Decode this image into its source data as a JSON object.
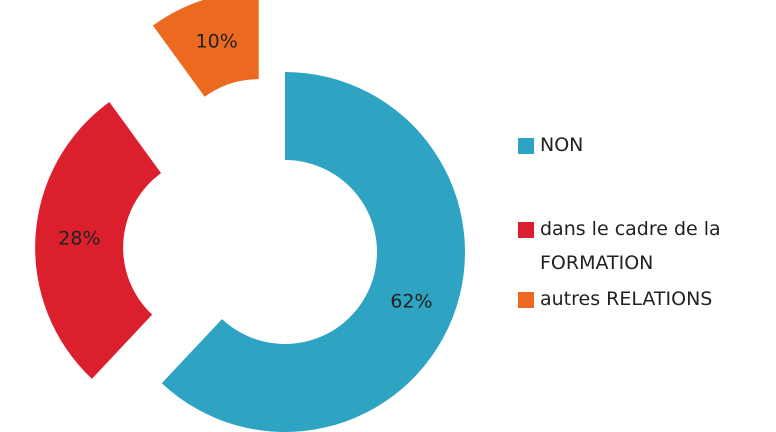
{
  "chart_data": {
    "type": "donut",
    "categories": [
      "NON",
      "dans le cadre de la FORMATION",
      "autres RELATIONS"
    ],
    "values": [
      62,
      28,
      10
    ],
    "value_labels": [
      "62%",
      "28%",
      "10%"
    ],
    "colors": [
      "#2ea3c2",
      "#dc1f2d",
      "#ec6a1f"
    ],
    "legend": "right"
  }
}
